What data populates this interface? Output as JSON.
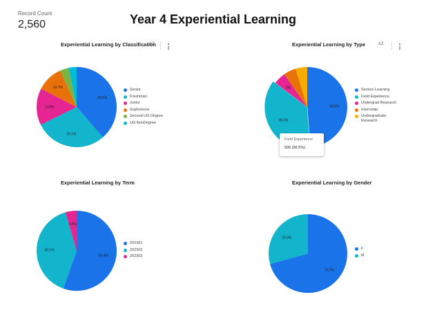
{
  "scorecard": {
    "label": "Record Count",
    "value": "2,560"
  },
  "report_title": "Year 4 Experiential Learning",
  "icons": {
    "sort": "sort-az-icon",
    "more": "more-vert-icon"
  },
  "colors": {
    "blue": "#1a73e8",
    "teal": "#12b5cb",
    "pink": "#e52592",
    "orange": "#e8710a",
    "green": "#7cb342",
    "cyan": "#00bcd4",
    "yellow": "#f9ab00"
  },
  "charts": {
    "classification": {
      "title": "Experiential Learning by Classification",
      "sort_label": "AZ",
      "has_menu": true
    },
    "type": {
      "title": "Experiential Learning by Type",
      "sort_label": "AZ",
      "has_menu": true
    },
    "term": {
      "title": "Experiential Learning by Term"
    },
    "gender": {
      "title": "Experiential Learning by Gender"
    }
  },
  "tooltip": {
    "label": "Field Experience",
    "value": "935 (36.5%)"
  },
  "chart_data": [
    {
      "type": "pie",
      "title": "Experiential Learning by Classification",
      "labels": [
        "Senior",
        "Freshman",
        "Junior",
        "Sophomore",
        "Second UG Degree",
        "UG NonDegree"
      ],
      "values": [
        38.6,
        29.1,
        14.9,
        10.7,
        3.5,
        3.2
      ],
      "data_labels": [
        "38.6%",
        "29.1%",
        "14.9%",
        "10.7%",
        "",
        ""
      ],
      "colors": [
        "#1a73e8",
        "#12b5cb",
        "#e52592",
        "#e8710a",
        "#7cb342",
        "#00bcd4"
      ],
      "legend": "right"
    },
    {
      "type": "pie",
      "title": "Experiential Learning by Type",
      "labels": [
        "Service Learning",
        "Field Experience",
        "Undergrad Research",
        "Internship",
        "Undergraduate Research"
      ],
      "values": [
        48.8,
        36.5,
        5.0,
        5.0,
        4.7
      ],
      "data_labels": [
        "48.8%",
        "36.5%",
        "5%",
        "",
        ""
      ],
      "colors": [
        "#1a73e8",
        "#12b5cb",
        "#e52592",
        "#e8710a",
        "#f9ab00"
      ],
      "highlighted": "Field Experience",
      "legend": "right"
    },
    {
      "type": "pie",
      "title": "Experiential Learning by Term",
      "labels": [
        "202301",
        "202302",
        "202303"
      ],
      "values": [
        55.4,
        40.1,
        4.5
      ],
      "data_labels": [
        "55.4%",
        "40.1%",
        "4.5%"
      ],
      "colors": [
        "#1a73e8",
        "#12b5cb",
        "#e52592"
      ],
      "legend": "right"
    },
    {
      "type": "pie",
      "title": "Experiential Learning by Gender",
      "labels": [
        "F",
        "M"
      ],
      "values": [
        70.7,
        29.3
      ],
      "data_labels": [
        "70.7%",
        "29.3%"
      ],
      "colors": [
        "#1a73e8",
        "#12b5cb"
      ],
      "legend": "right"
    }
  ]
}
